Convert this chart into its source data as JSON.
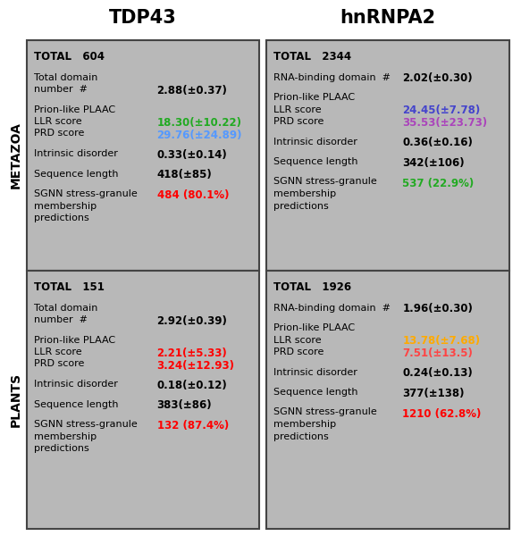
{
  "title_left": "TDP43",
  "title_right": "hnRNPA2",
  "row_label_top": "METAZOA",
  "row_label_bottom": "PLANTS",
  "cells": {
    "tdp43_metazoa": {
      "total": "TOTAL   604",
      "rows": [
        {
          "label": "Total domain\nnumber  #",
          "value": "2.88(±0.37)",
          "color": "#000000",
          "type": "single"
        },
        {
          "label": "Prion-like PLAAC",
          "llr_label": "LLR score",
          "prd_label": "PRD score",
          "llr_value": "18.30(±10.22)",
          "prd_value": "29.76(±24.89)",
          "llr_color": "#22aa22",
          "prd_color": "#5599ff",
          "type": "plaac"
        },
        {
          "label": "Intrinsic disorder",
          "value": "0.33(±0.14)",
          "color": "#000000",
          "type": "single"
        },
        {
          "label": "Sequence length",
          "value": "418(±85)",
          "color": "#000000",
          "type": "single"
        },
        {
          "label": "SGNN stress-granule\nmembership\npredictions",
          "value": "484 (80.1%)",
          "color": "#ff0000",
          "type": "sgnn"
        }
      ]
    },
    "tdp43_plants": {
      "total": "TOTAL   151",
      "rows": [
        {
          "label": "Total domain\nnumber  #",
          "value": "2.92(±0.39)",
          "color": "#000000",
          "type": "single"
        },
        {
          "label": "Prion-like PLAAC",
          "llr_label": "LLR score",
          "prd_label": "PRD score",
          "llr_value": "2.21(±5.33)",
          "prd_value": "3.24(±12.93)",
          "llr_color": "#ff0000",
          "prd_color": "#ff0000",
          "type": "plaac"
        },
        {
          "label": "Intrinsic disorder",
          "value": "0.18(±0.12)",
          "color": "#000000",
          "type": "single"
        },
        {
          "label": "Sequence length",
          "value": "383(±86)",
          "color": "#000000",
          "type": "single"
        },
        {
          "label": "SGNN stress-granule\nmembership\npredictions",
          "value": "132 (87.4%)",
          "color": "#ff0000",
          "type": "sgnn"
        }
      ]
    },
    "hnrnpa2_metazoa": {
      "total": "TOTAL   2344",
      "rows": [
        {
          "label": "RNA-binding domain  #",
          "value": "2.02(±0.30)",
          "color": "#000000",
          "type": "single_oneline"
        },
        {
          "label": "Prion-like PLAAC",
          "llr_label": "LLR score",
          "prd_label": "PRD score",
          "llr_value": "24.45(±7.78)",
          "prd_value": "35.53(±23.73)",
          "llr_color": "#4444cc",
          "prd_color": "#aa44bb",
          "type": "plaac"
        },
        {
          "label": "Intrinsic disorder",
          "value": "0.36(±0.16)",
          "color": "#000000",
          "type": "single"
        },
        {
          "label": "Sequence length",
          "value": "342(±106)",
          "color": "#000000",
          "type": "single"
        },
        {
          "label": "SGNN stress-granule\nmembership\npredictions",
          "value": "537 (22.9%)",
          "color": "#22aa22",
          "type": "sgnn"
        }
      ]
    },
    "hnrnpa2_plants": {
      "total": "TOTAL   1926",
      "rows": [
        {
          "label": "RNA-binding domain  #",
          "value": "1.96(±0.30)",
          "color": "#000000",
          "type": "single_oneline"
        },
        {
          "label": "Prion-like PLAAC",
          "llr_label": "LLR score",
          "prd_label": "PRD score",
          "llr_value": "13.78(±7.68)",
          "prd_value": "7.51(±13.5)",
          "llr_color": "#ffaa00",
          "prd_color": "#ff4444",
          "type": "plaac"
        },
        {
          "label": "Intrinsic disorder",
          "value": "0.24(±0.13)",
          "color": "#000000",
          "type": "single"
        },
        {
          "label": "Sequence length",
          "value": "377(±138)",
          "color": "#000000",
          "type": "single"
        },
        {
          "label": "SGNN stress-granule\nmembership\npredictions",
          "value": "1210 (62.8%)",
          "color": "#ff0000",
          "type": "sgnn"
        }
      ]
    }
  }
}
